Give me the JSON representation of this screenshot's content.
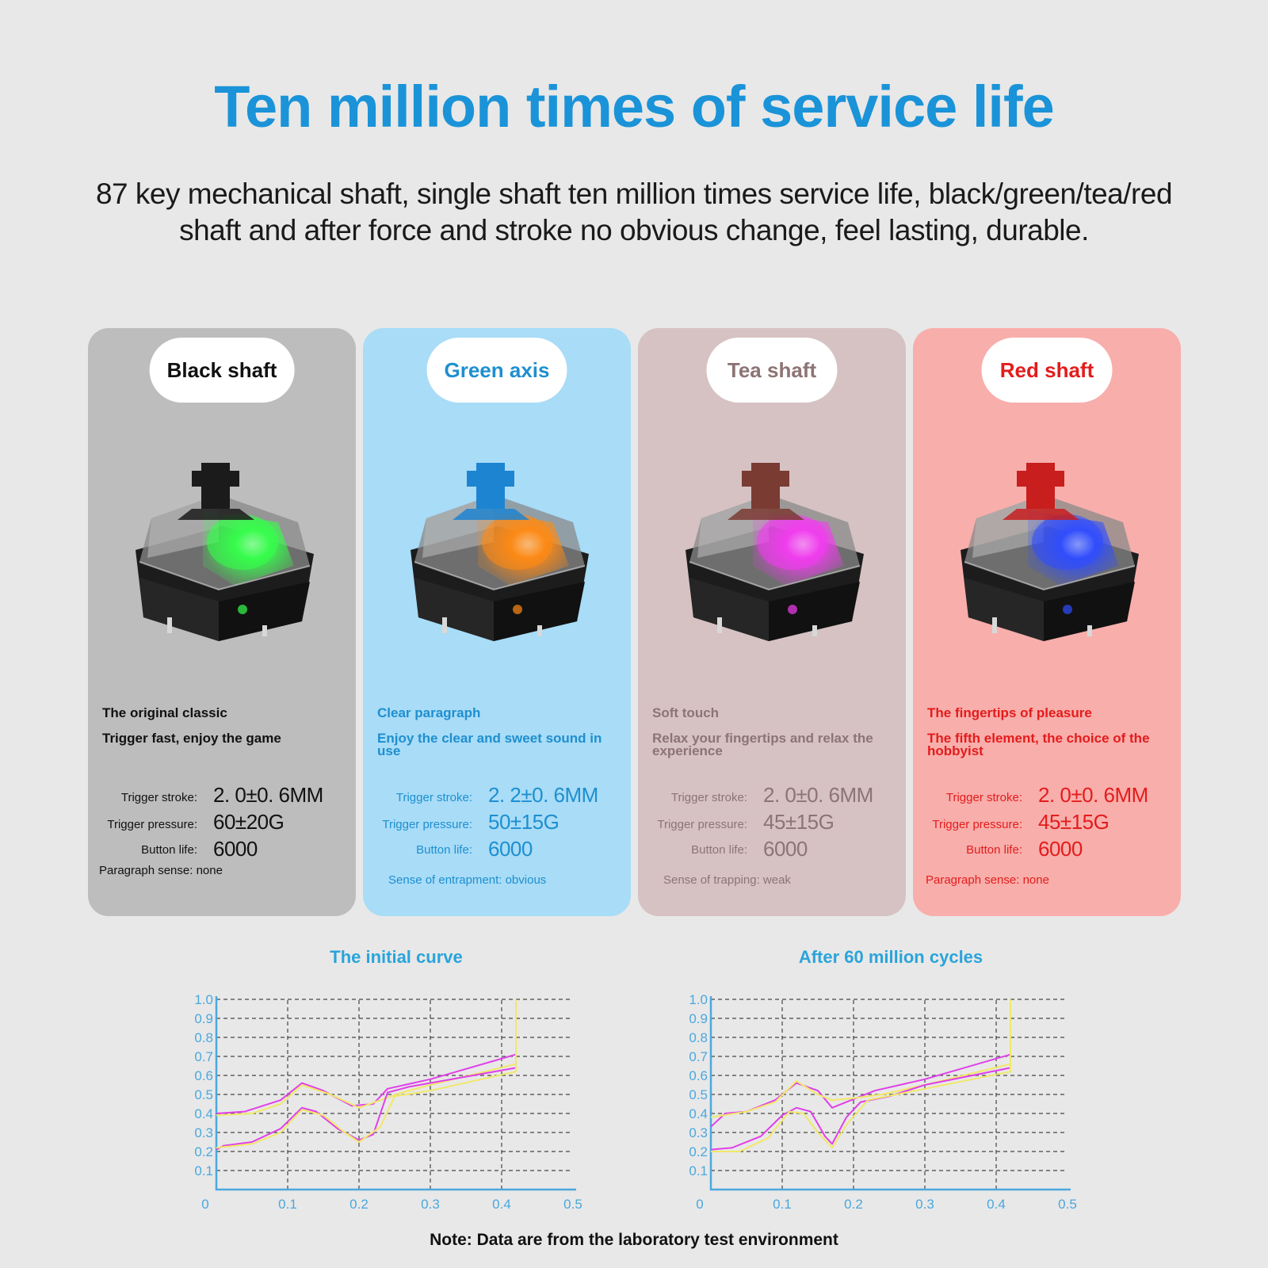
{
  "header": {
    "title": "Ten million times of service life",
    "subtitle": "87 key mechanical shaft, single shaft ten million times service life, black/green/tea/red shaft and after force and stroke no obvious change, feel lasting, durable."
  },
  "cards": [
    {
      "name": "Black shaft",
      "bg": "#bdbdbd",
      "text": "#111111",
      "stem": "#1b1b1b",
      "glow": "#35ff4a",
      "line1": "The original classic",
      "line2": "Trigger fast, enjoy the game",
      "stroke_label": "Trigger stroke:",
      "stroke": "2. 0±0. 6MM",
      "pressure_label": "Trigger pressure:",
      "pressure": "60±20G",
      "life_label": "Button life:",
      "life": "6000",
      "note": "Paragraph sense: none"
    },
    {
      "name": "Green axis",
      "bg": "#a8dcf7",
      "text": "#1e8fcf",
      "stem": "#1d84d1",
      "glow": "#ff8a14",
      "line1": "Clear paragraph",
      "line2": "Enjoy the clear and sweet sound in use",
      "stroke_label": "Trigger stroke:",
      "stroke": "2. 2±0. 6MM",
      "pressure_label": "Trigger pressure:",
      "pressure": "50±15G",
      "life_label": "Button life:",
      "life": "6000",
      "note": "Sense of entrapment: obvious"
    },
    {
      "name": "Tea shaft",
      "bg": "#d6c2c3",
      "text": "#8d7474",
      "stem": "#7a3b33",
      "glow": "#f23cf0",
      "line1": "Soft touch",
      "line2": "Relax your fingertips and relax the experience",
      "stroke_label": "Trigger stroke:",
      "stroke": "2. 0±0. 6MM",
      "pressure_label": "Trigger pressure:",
      "pressure": "45±15G",
      "life_label": "Button life:",
      "life": "6000",
      "note": "Sense of trapping: weak"
    },
    {
      "name": "Red shaft",
      "bg": "#f8aeab",
      "text": "#e31c1c",
      "stem": "#c81e1e",
      "glow": "#2f4dff",
      "line1": "The fingertips of pleasure",
      "line2": "The fifth element, the choice of the hobbyist",
      "stroke_label": "Trigger stroke:",
      "stroke": "2. 0±0. 6MM",
      "pressure_label": "Trigger pressure:",
      "pressure": "45±15G",
      "life_label": "Button life:",
      "life": "6000",
      "note": "Paragraph sense: none"
    }
  ],
  "chart_data": [
    {
      "type": "line",
      "title": "The initial curve",
      "xlim": [
        0,
        0.5
      ],
      "ylim": [
        0,
        1.0
      ],
      "xticks": [
        "0",
        "0.1",
        "0.2",
        "0.3",
        "0.4",
        "0.5"
      ],
      "yticks": [
        "0.1",
        "0.2",
        "0.3",
        "0.4",
        "0.5",
        "0.6",
        "0.7",
        "0.8",
        "0.9",
        "1.0"
      ],
      "grid": true,
      "series": [
        {
          "color": "#e040e8",
          "points": [
            [
              0,
              0.4
            ],
            [
              0.04,
              0.41
            ],
            [
              0.09,
              0.47
            ],
            [
              0.12,
              0.56
            ],
            [
              0.15,
              0.52
            ],
            [
              0.19,
              0.44
            ],
            [
              0.22,
              0.45
            ],
            [
              0.24,
              0.53
            ],
            [
              0.3,
              0.58
            ],
            [
              0.42,
              0.71
            ],
            [
              0.42,
              1.0
            ]
          ]
        },
        {
          "color": "#f0e868",
          "points": [
            [
              0,
              0.39
            ],
            [
              0.05,
              0.4
            ],
            [
              0.09,
              0.45
            ],
            [
              0.12,
              0.55
            ],
            [
              0.16,
              0.5
            ],
            [
              0.2,
              0.43
            ],
            [
              0.23,
              0.47
            ],
            [
              0.26,
              0.51
            ],
            [
              0.3,
              0.55
            ],
            [
              0.42,
              0.66
            ],
            [
              0.42,
              1.0
            ]
          ]
        },
        {
          "color": "#e040e8",
          "points": [
            [
              0,
              0.21
            ],
            [
              0.01,
              0.23
            ],
            [
              0.05,
              0.25
            ],
            [
              0.09,
              0.32
            ],
            [
              0.12,
              0.43
            ],
            [
              0.14,
              0.41
            ],
            [
              0.17,
              0.32
            ],
            [
              0.2,
              0.26
            ],
            [
              0.22,
              0.29
            ],
            [
              0.24,
              0.51
            ],
            [
              0.27,
              0.54
            ],
            [
              0.42,
              0.64
            ],
            [
              0.42,
              1.0
            ]
          ]
        },
        {
          "color": "#f0e868",
          "points": [
            [
              0,
              0.22
            ],
            [
              0.05,
              0.24
            ],
            [
              0.09,
              0.3
            ],
            [
              0.12,
              0.42
            ],
            [
              0.15,
              0.39
            ],
            [
              0.18,
              0.3
            ],
            [
              0.2,
              0.25
            ],
            [
              0.23,
              0.33
            ],
            [
              0.25,
              0.49
            ],
            [
              0.3,
              0.52
            ],
            [
              0.42,
              0.62
            ],
            [
              0.42,
              1.0
            ]
          ]
        }
      ]
    },
    {
      "type": "line",
      "title": "After 60 million cycles",
      "xlim": [
        0,
        0.5
      ],
      "ylim": [
        0,
        1.0
      ],
      "xticks": [
        "0",
        "0.1",
        "0.2",
        "0.3",
        "0.4",
        "0.5"
      ],
      "yticks": [
        "0.1",
        "0.2",
        "0.3",
        "0.4",
        "0.5",
        "0.6",
        "0.7",
        "0.8",
        "0.9",
        "1.0"
      ],
      "grid": true,
      "series": [
        {
          "color": "#e040e8",
          "points": [
            [
              0,
              0.33
            ],
            [
              0.02,
              0.4
            ],
            [
              0.05,
              0.41
            ],
            [
              0.09,
              0.47
            ],
            [
              0.12,
              0.56
            ],
            [
              0.15,
              0.52
            ],
            [
              0.17,
              0.43
            ],
            [
              0.19,
              0.46
            ],
            [
              0.23,
              0.52
            ],
            [
              0.3,
              0.58
            ],
            [
              0.42,
              0.71
            ],
            [
              0.42,
              1.0
            ]
          ]
        },
        {
          "color": "#f0e868",
          "points": [
            [
              0,
              0.38
            ],
            [
              0.05,
              0.41
            ],
            [
              0.09,
              0.46
            ],
            [
              0.12,
              0.57
            ],
            [
              0.15,
              0.5
            ],
            [
              0.17,
              0.47
            ],
            [
              0.2,
              0.48
            ],
            [
              0.24,
              0.5
            ],
            [
              0.3,
              0.55
            ],
            [
              0.42,
              0.66
            ],
            [
              0.42,
              1.0
            ]
          ]
        },
        {
          "color": "#e040e8",
          "points": [
            [
              0,
              0.21
            ],
            [
              0.03,
              0.22
            ],
            [
              0.07,
              0.28
            ],
            [
              0.1,
              0.39
            ],
            [
              0.12,
              0.43
            ],
            [
              0.14,
              0.41
            ],
            [
              0.16,
              0.28
            ],
            [
              0.17,
              0.24
            ],
            [
              0.19,
              0.38
            ],
            [
              0.21,
              0.46
            ],
            [
              0.25,
              0.49
            ],
            [
              0.3,
              0.55
            ],
            [
              0.42,
              0.64
            ],
            [
              0.42,
              1.0
            ]
          ]
        },
        {
          "color": "#f0e868",
          "points": [
            [
              0,
              0.2
            ],
            [
              0.04,
              0.2
            ],
            [
              0.08,
              0.27
            ],
            [
              0.11,
              0.41
            ],
            [
              0.13,
              0.4
            ],
            [
              0.15,
              0.3
            ],
            [
              0.17,
              0.22
            ],
            [
              0.19,
              0.34
            ],
            [
              0.22,
              0.47
            ],
            [
              0.26,
              0.5
            ],
            [
              0.3,
              0.53
            ],
            [
              0.42,
              0.62
            ],
            [
              0.42,
              1.0
            ]
          ]
        }
      ]
    }
  ],
  "footer": {
    "note": "Note: Data are from the laboratory test environment"
  }
}
